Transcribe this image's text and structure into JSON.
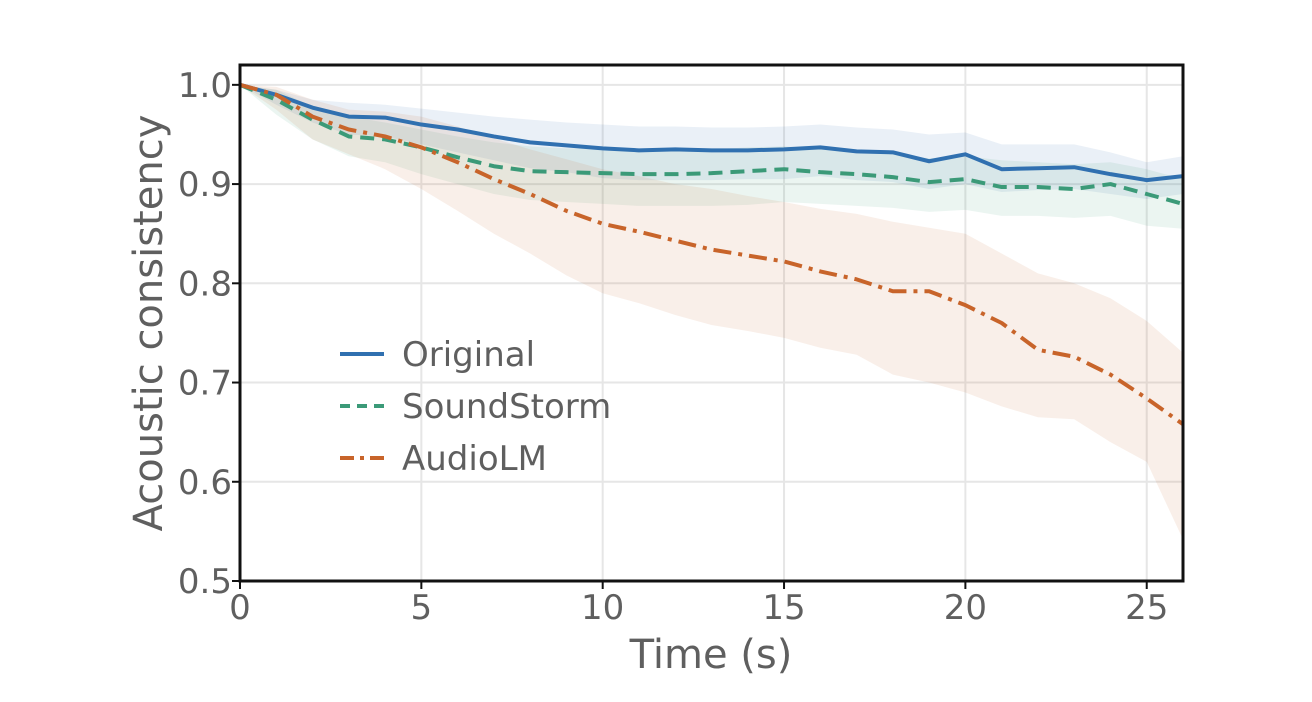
{
  "chart_data": {
    "type": "line",
    "title": "",
    "xlabel": "Time (s)",
    "ylabel": "Acoustic consistency",
    "xlim": [
      0,
      26
    ],
    "ylim": [
      0.5,
      1.02
    ],
    "grid": true,
    "legend_position": "center-left",
    "xticks": [
      "0",
      "5",
      "10",
      "15",
      "20",
      "25"
    ],
    "yticks": [
      "0.5",
      "0.6",
      "0.7",
      "0.8",
      "0.9",
      "1.0"
    ],
    "x": [
      0,
      1,
      2,
      3,
      4,
      5,
      6,
      7,
      8,
      9,
      10,
      11,
      12,
      13,
      14,
      15,
      16,
      17,
      18,
      19,
      20,
      21,
      22,
      23,
      24,
      25,
      26
    ],
    "series": [
      {
        "name": "Original",
        "color": "#3070b0",
        "dash": "solid",
        "values": [
          1.0,
          0.99,
          0.977,
          0.968,
          0.967,
          0.96,
          0.955,
          0.948,
          0.942,
          0.939,
          0.936,
          0.934,
          0.935,
          0.934,
          0.934,
          0.935,
          0.937,
          0.933,
          0.932,
          0.923,
          0.93,
          0.915,
          0.916,
          0.917,
          0.91,
          0.904,
          0.908
        ],
        "lower": [
          1.0,
          0.98,
          0.962,
          0.95,
          0.948,
          0.94,
          0.932,
          0.924,
          0.916,
          0.912,
          0.906,
          0.904,
          0.904,
          0.904,
          0.905,
          0.905,
          0.908,
          0.904,
          0.902,
          0.895,
          0.9,
          0.892,
          0.894,
          0.895,
          0.89,
          0.885,
          0.89
        ],
        "upper": [
          1.0,
          0.995,
          0.985,
          0.982,
          0.98,
          0.976,
          0.972,
          0.968,
          0.965,
          0.962,
          0.96,
          0.958,
          0.958,
          0.957,
          0.957,
          0.958,
          0.96,
          0.957,
          0.955,
          0.95,
          0.952,
          0.94,
          0.94,
          0.94,
          0.932,
          0.922,
          0.928
        ]
      },
      {
        "name": "SoundStorm",
        "color": "#3b9a78",
        "dash": "dashed",
        "values": [
          1.0,
          0.985,
          0.965,
          0.948,
          0.945,
          0.937,
          0.927,
          0.918,
          0.913,
          0.912,
          0.911,
          0.91,
          0.91,
          0.911,
          0.913,
          0.915,
          0.912,
          0.91,
          0.907,
          0.902,
          0.905,
          0.897,
          0.897,
          0.895,
          0.9,
          0.89,
          0.88
        ],
        "lower": [
          1.0,
          0.97,
          0.945,
          0.928,
          0.922,
          0.91,
          0.9,
          0.89,
          0.884,
          0.882,
          0.88,
          0.878,
          0.878,
          0.878,
          0.879,
          0.882,
          0.88,
          0.878,
          0.876,
          0.872,
          0.874,
          0.868,
          0.868,
          0.866,
          0.868,
          0.858,
          0.855
        ],
        "upper": [
          1.0,
          0.995,
          0.978,
          0.968,
          0.962,
          0.955,
          0.948,
          0.942,
          0.938,
          0.936,
          0.936,
          0.934,
          0.934,
          0.935,
          0.937,
          0.938,
          0.936,
          0.934,
          0.93,
          0.926,
          0.928,
          0.924,
          0.922,
          0.92,
          0.922,
          0.915,
          0.905
        ]
      },
      {
        "name": "AudioLM",
        "color": "#c8642a",
        "dash": "dashdot",
        "values": [
          1.0,
          0.99,
          0.968,
          0.955,
          0.948,
          0.937,
          0.922,
          0.905,
          0.89,
          0.873,
          0.86,
          0.852,
          0.843,
          0.834,
          0.828,
          0.822,
          0.812,
          0.804,
          0.792,
          0.792,
          0.778,
          0.76,
          0.733,
          0.726,
          0.708,
          0.684,
          0.658
        ],
        "lower": [
          1.0,
          0.975,
          0.945,
          0.93,
          0.915,
          0.895,
          0.873,
          0.85,
          0.83,
          0.808,
          0.79,
          0.78,
          0.768,
          0.758,
          0.752,
          0.745,
          0.735,
          0.728,
          0.708,
          0.7,
          0.69,
          0.676,
          0.665,
          0.663,
          0.64,
          0.62,
          0.542
        ],
        "upper": [
          1.0,
          0.998,
          0.985,
          0.975,
          0.973,
          0.968,
          0.958,
          0.946,
          0.935,
          0.925,
          0.915,
          0.908,
          0.9,
          0.895,
          0.888,
          0.882,
          0.875,
          0.87,
          0.862,
          0.856,
          0.85,
          0.83,
          0.81,
          0.8,
          0.785,
          0.762,
          0.73
        ]
      }
    ]
  }
}
